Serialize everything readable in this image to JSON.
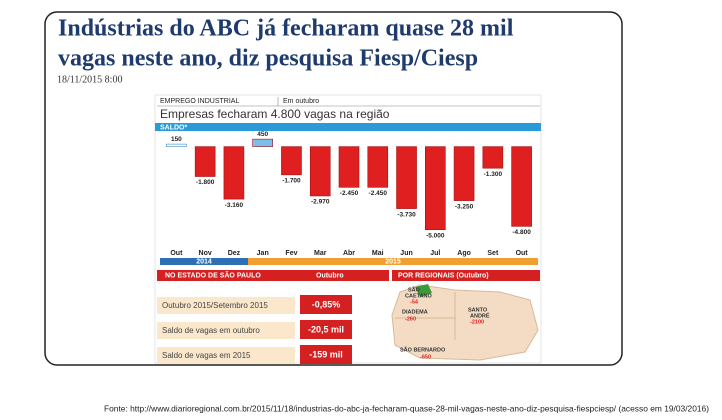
{
  "header": {
    "title_lines": [
      "Indústrias do ABC já fecharam quase 28 mil",
      "vagas neste ano, diz pesquisa Fiesp/Ciesp"
    ],
    "date": "18/11/2015 8:00"
  },
  "infographic": {
    "section": "EMPREGO INDUSTRIAL",
    "period": "Em outubro",
    "headline": "Empresas fecharam 4.800 vagas na região"
  },
  "chart_data": {
    "type": "bar",
    "title": "SALDO*",
    "categories": [
      "Out",
      "Nov",
      "Dez",
      "Jan",
      "Fev",
      "Mar",
      "Abr",
      "Mai",
      "Jun",
      "Jul",
      "Ago",
      "Set",
      "Out"
    ],
    "values": [
      150,
      -1800,
      -3160,
      450,
      -1700,
      -2970,
      -2450,
      -2450,
      -3730,
      -5000,
      -3250,
      -1300,
      -4800
    ],
    "value_labels": [
      "150",
      "-1.800",
      "-3.160",
      "450",
      "-1.700",
      "-2.970",
      "-2.450",
      "-2.450",
      "-3.730",
      "-5.000",
      "-3.250",
      "-1.300",
      "-4.800"
    ],
    "colors": [
      "#ffffff",
      "#e02020",
      "#e02020",
      "#7cc0ea",
      "#e02020",
      "#e02020",
      "#e02020",
      "#e02020",
      "#e02020",
      "#e02020",
      "#e02020",
      "#e02020",
      "#e02020"
    ],
    "years": [
      "2014",
      "2015"
    ],
    "ylim": [
      -5200,
      1000
    ]
  },
  "table": {
    "title": "NO ESTADO DE SÃO PAULO",
    "column": "Outubro",
    "rows": [
      [
        "Outubro 2015/Setembro 2015",
        "-0,85%"
      ],
      [
        "Saldo de vagas em outubro",
        "-20,5 mil"
      ],
      [
        "Saldo de vagas em 2015",
        "-159 mil"
      ]
    ]
  },
  "map": {
    "title": "POR REGIONAIS (Outubro)",
    "regions": [
      {
        "name": "SÃO",
        "name2": "CAETANO",
        "value": "-54"
      },
      {
        "name": "DIADEMA",
        "value": "-260"
      },
      {
        "name": "SANTO",
        "name2": "ANDRÉ",
        "value": "-2100"
      },
      {
        "name": "SÃO BERNARDO",
        "value": "-650"
      }
    ]
  },
  "source": "Fonte: http://www.diarioregional.com.br/2015/11/18/industrias-do-abc-ja-fecharam-quase-28-mil-vagas-neste-ano-diz-pesquisa-fiespciesp/ (acesso em 19/03/2016)"
}
